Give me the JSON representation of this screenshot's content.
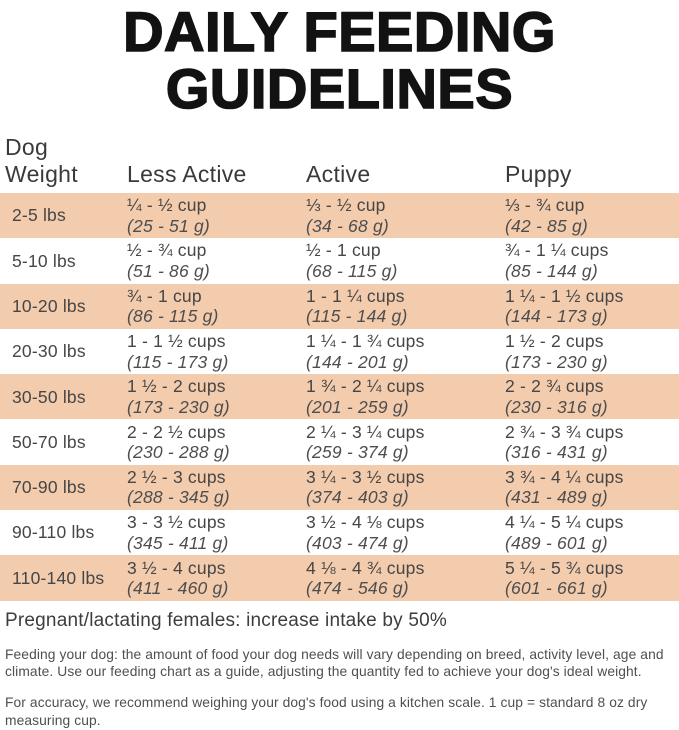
{
  "title": {
    "line1": "DAILY FEEDING",
    "line2": "GUIDELINES"
  },
  "colors": {
    "row_shade": "#f3cbad",
    "title_text": "#121212",
    "body_text": "#464646"
  },
  "table": {
    "headers": {
      "weight_line1": "Dog",
      "weight_line2": "Weight",
      "less_active": "Less Active",
      "active": "Active",
      "puppy": "Puppy"
    },
    "rows": [
      {
        "weight": "2-5 lbs",
        "less_active": {
          "cups": "¼ - ½ cup",
          "grams": "(25 - 51 g)"
        },
        "active": {
          "cups": "⅓ - ½ cup",
          "grams": "(34 - 68 g)"
        },
        "puppy": {
          "cups": "⅓ - ¾ cup",
          "grams": "(42 - 85 g)"
        }
      },
      {
        "weight": "5-10 lbs",
        "less_active": {
          "cups": "½ - ¾ cup",
          "grams": "(51 - 86 g)"
        },
        "active": {
          "cups": "½ - 1 cup",
          "grams": "(68 - 115 g)"
        },
        "puppy": {
          "cups": "¾ - 1 ¼ cups",
          "grams": "(85 - 144 g)"
        }
      },
      {
        "weight": "10-20 lbs",
        "less_active": {
          "cups": "¾ - 1 cup",
          "grams": "(86 - 115 g)"
        },
        "active": {
          "cups": "1 - 1 ¼ cups",
          "grams": "(115 - 144 g)"
        },
        "puppy": {
          "cups": "1 ¼ - 1 ½ cups",
          "grams": "(144 - 173 g)"
        }
      },
      {
        "weight": "20-30 lbs",
        "less_active": {
          "cups": "1 - 1 ½ cups",
          "grams": "(115 - 173 g)"
        },
        "active": {
          "cups": "1 ¼ - 1 ¾ cups",
          "grams": "(144 - 201 g)"
        },
        "puppy": {
          "cups": "1 ½ - 2 cups",
          "grams": "(173 - 230 g)"
        }
      },
      {
        "weight": "30-50 lbs",
        "less_active": {
          "cups": "1 ½ - 2 cups",
          "grams": "(173 - 230 g)"
        },
        "active": {
          "cups": "1 ¾ - 2 ¼ cups",
          "grams": "(201 - 259 g)"
        },
        "puppy": {
          "cups": "2 - 2 ¾ cups",
          "grams": "(230 - 316 g)"
        }
      },
      {
        "weight": "50-70 lbs",
        "less_active": {
          "cups": "2 - 2 ½ cups",
          "grams": "(230 - 288 g)"
        },
        "active": {
          "cups": "2 ¼ - 3 ¼ cups",
          "grams": "(259 - 374 g)"
        },
        "puppy": {
          "cups": "2 ¾ - 3 ¾ cups",
          "grams": "(316 - 431 g)"
        }
      },
      {
        "weight": "70-90 lbs",
        "less_active": {
          "cups": "2 ½ - 3 cups",
          "grams": "(288 - 345 g)"
        },
        "active": {
          "cups": "3 ¼ - 3 ½ cups",
          "grams": "(374 - 403 g)"
        },
        "puppy": {
          "cups": "3 ¾ - 4 ¼ cups",
          "grams": "(431 - 489 g)"
        }
      },
      {
        "weight": "90-110 lbs",
        "less_active": {
          "cups": "3 - 3 ½ cups",
          "grams": "(345 - 411 g)"
        },
        "active": {
          "cups": "3 ½ - 4 ⅛ cups",
          "grams": "(403 - 474 g)"
        },
        "puppy": {
          "cups": "4 ¼ - 5 ¼ cups",
          "grams": "(489 - 601 g)"
        }
      },
      {
        "weight": "110-140 lbs",
        "less_active": {
          "cups": "3 ½ - 4 cups",
          "grams": "(411 - 460 g)"
        },
        "active": {
          "cups": "4 ⅛ - 4 ¾ cups",
          "grams": "(474 - 546 g)"
        },
        "puppy": {
          "cups": "5 ¼ - 5 ¾ cups",
          "grams": "(601 - 661 g)"
        }
      }
    ]
  },
  "notes": {
    "pregnant": "Pregnant/lactating females: increase intake by 50%",
    "feeding": "Feeding your dog: the amount of food your dog needs will vary depending on breed, activity level, age and climate. Use our feeding chart as a guide, adjusting the quantity fed to achieve your dog's ideal weight.",
    "accuracy": "For accuracy, we recommend weighing your dog's food using a kitchen scale. 1 cup = standard 8 oz dry measuring cup."
  }
}
